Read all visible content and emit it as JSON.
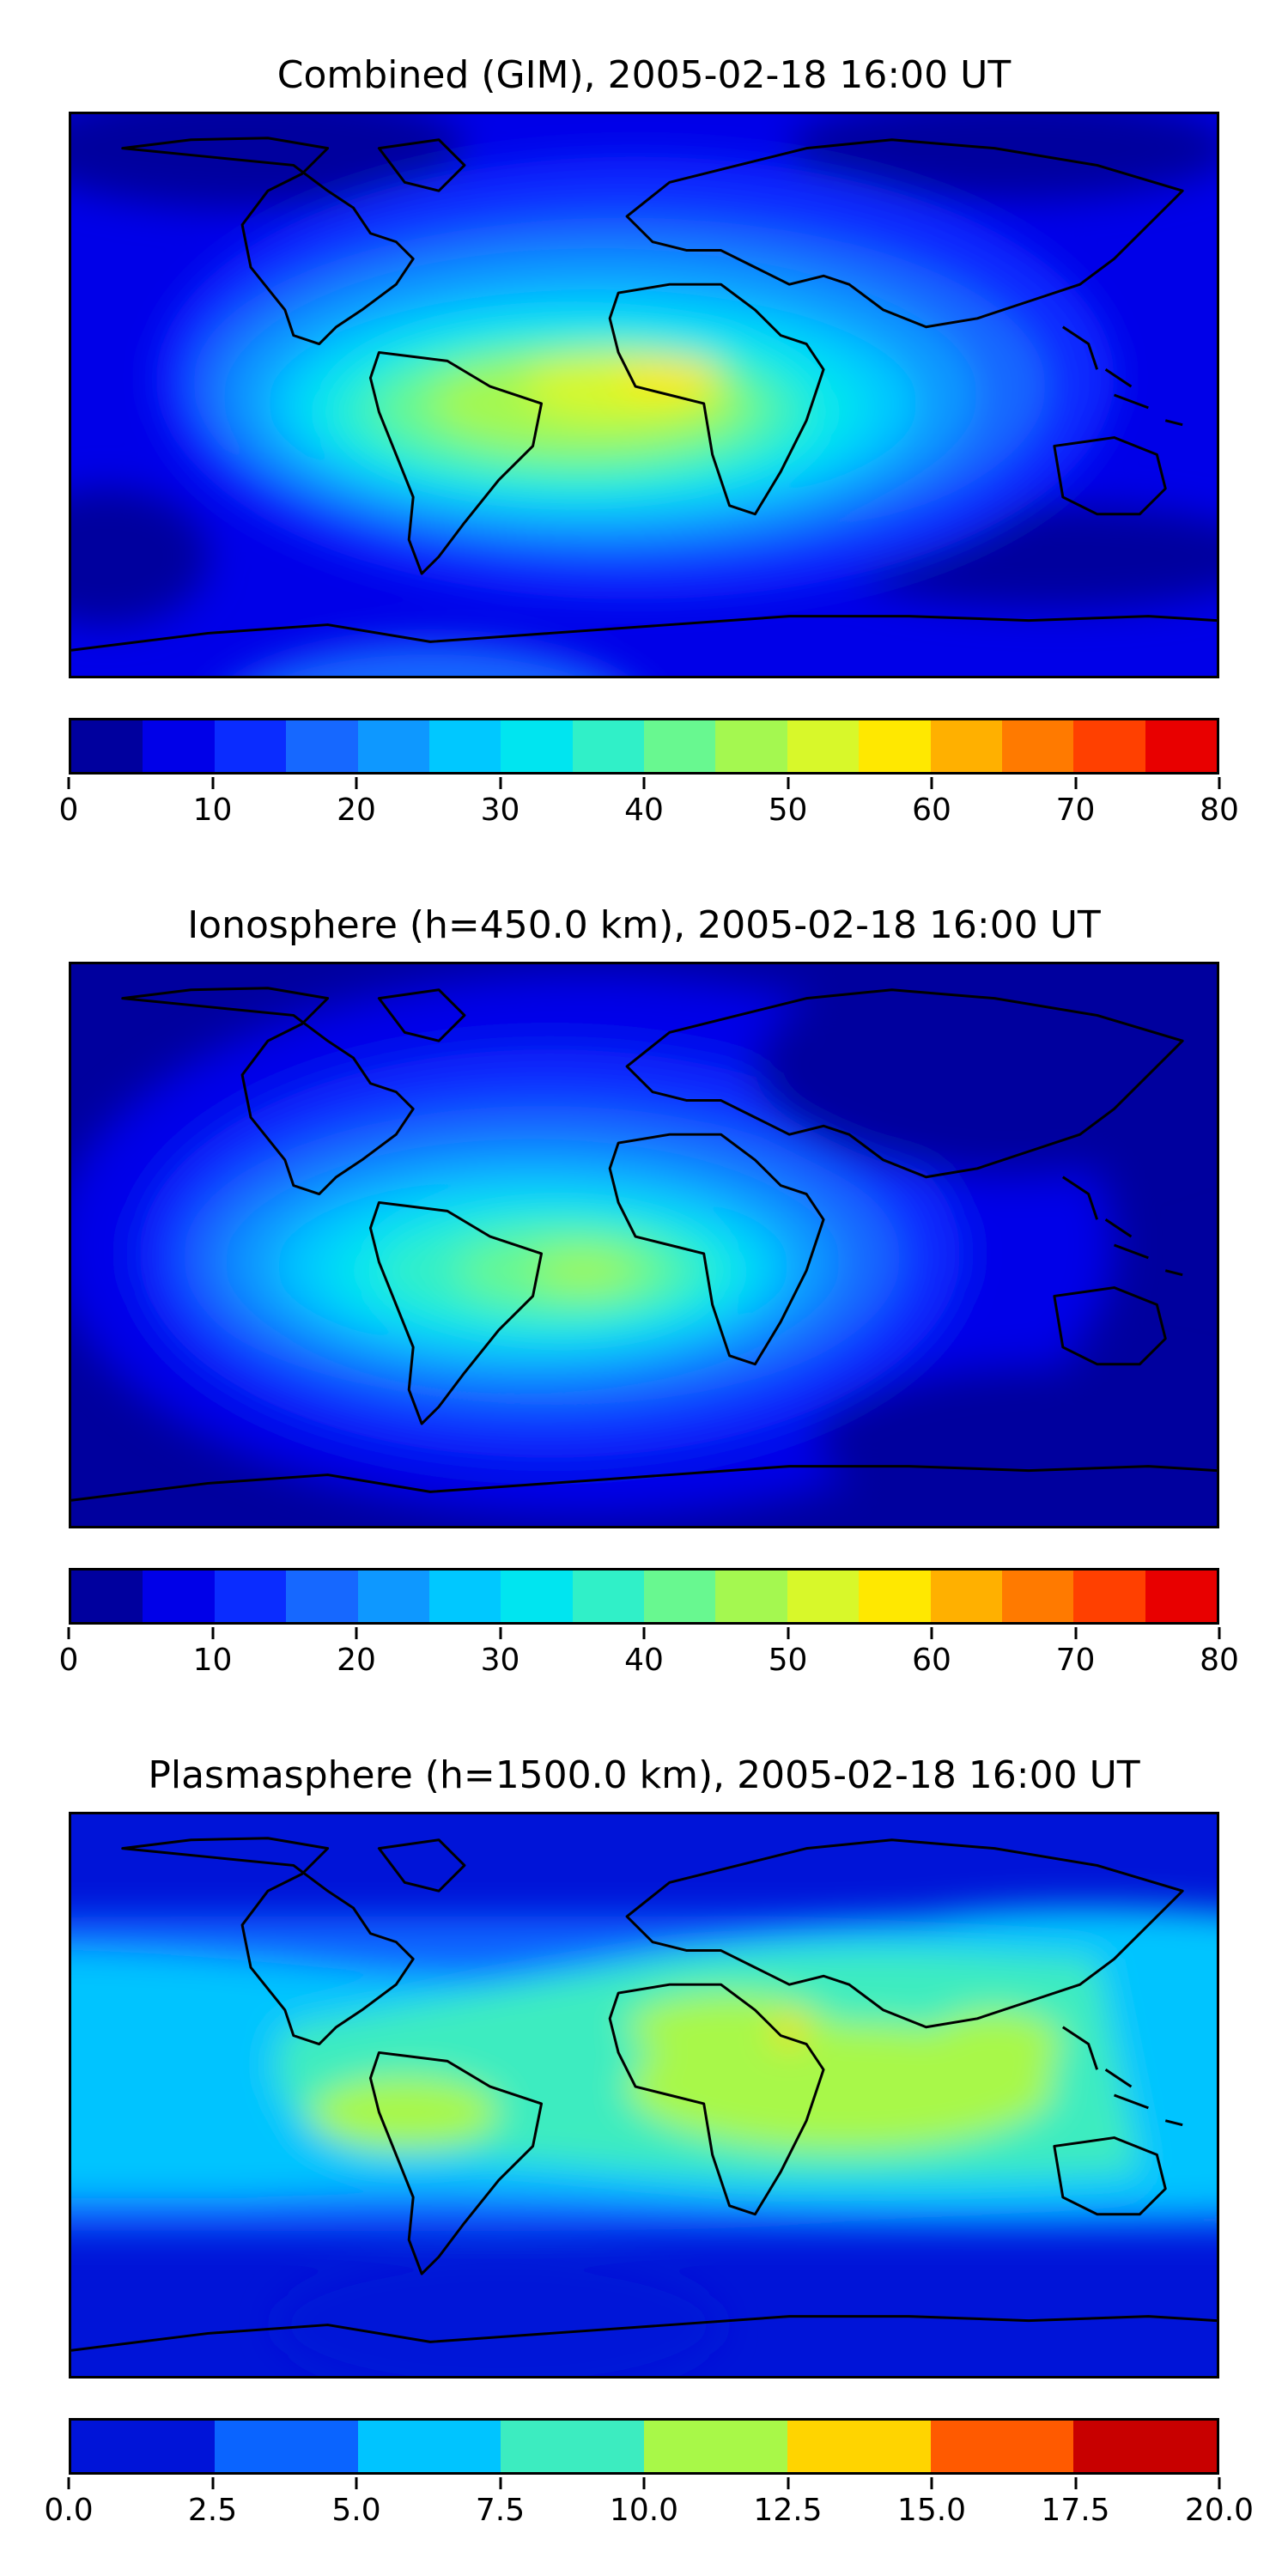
{
  "panels": [
    {
      "title": "Combined (GIM), 2005-02-18 16:00 UT",
      "colorbar": {
        "levels": [
          0,
          5,
          10,
          15,
          20,
          25,
          30,
          35,
          40,
          45,
          50,
          55,
          60,
          65,
          70,
          75,
          80
        ],
        "colors": [
          "#00009e",
          "#0000e8",
          "#0a2cff",
          "#1668ff",
          "#0e98ff",
          "#00c8ff",
          "#00e5f0",
          "#30f0c8",
          "#68f890",
          "#a4f850",
          "#d8f82a",
          "#ffe800",
          "#ffb000",
          "#ff7a00",
          "#ff4000",
          "#e80000",
          "#a00000"
        ],
        "tick_labels": [
          "0",
          "10",
          "20",
          "30",
          "40",
          "50",
          "60",
          "70",
          "80"
        ]
      }
    },
    {
      "title": "Ionosphere  (h=450.0 km), 2005-02-18 16:00 UT",
      "colorbar": {
        "levels": [
          0,
          5,
          10,
          15,
          20,
          25,
          30,
          35,
          40,
          45,
          50,
          55,
          60,
          65,
          70,
          75,
          80
        ],
        "colors": [
          "#00009e",
          "#0000e8",
          "#0a2cff",
          "#1668ff",
          "#0e98ff",
          "#00c8ff",
          "#00e5f0",
          "#30f0c8",
          "#68f890",
          "#a4f850",
          "#d8f82a",
          "#ffe800",
          "#ffb000",
          "#ff7a00",
          "#ff4000",
          "#e80000",
          "#a00000"
        ],
        "tick_labels": [
          "0",
          "10",
          "20",
          "30",
          "40",
          "50",
          "60",
          "70",
          "80"
        ]
      }
    },
    {
      "title": "Plasmasphere (h=1500.0 km), 2005-02-18 16:00 UT",
      "colorbar": {
        "levels": [
          0.0,
          2.5,
          5.0,
          7.5,
          10.0,
          12.5,
          15.0,
          17.5,
          20.0
        ],
        "colors": [
          "#0014d8",
          "#0a64ff",
          "#00c4ff",
          "#3cecc0",
          "#a8f848",
          "#ffd400",
          "#ff5a00",
          "#c80000"
        ],
        "tick_labels": [
          "0.0",
          "2.5",
          "5.0",
          "7.5",
          "10.0",
          "12.5",
          "15.0",
          "17.5",
          "20.0"
        ]
      }
    }
  ]
}
